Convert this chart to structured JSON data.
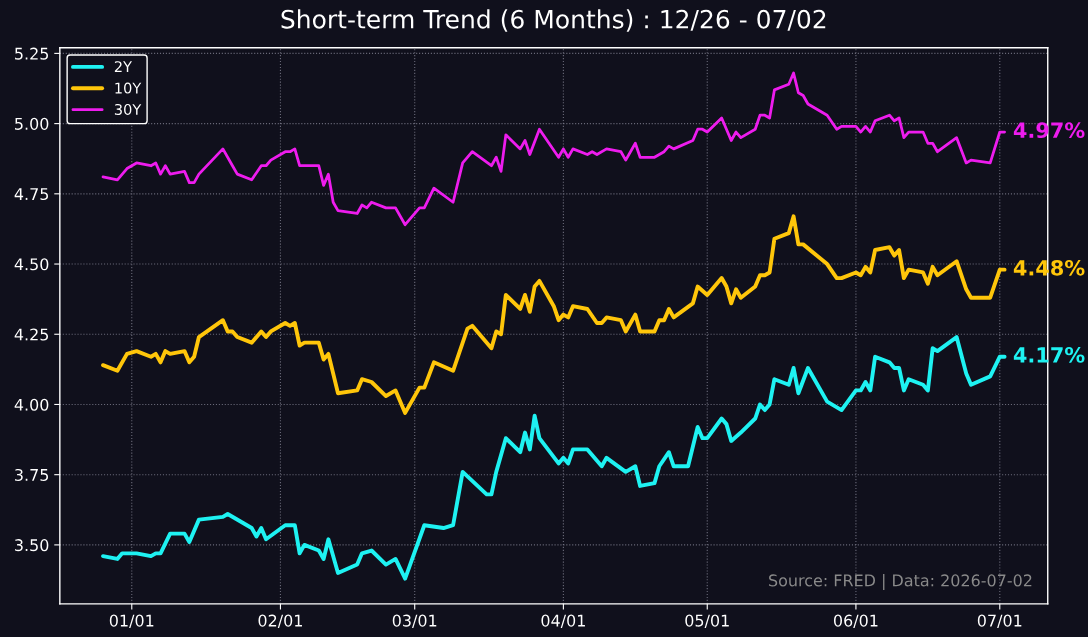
{
  "chart_data": {
    "type": "line",
    "title": "Short-term Trend (6 Months) : 12/26 - 07/02",
    "xlim": [
      "2025-12-17",
      "2026-07-11"
    ],
    "ylim": [
      3.29,
      5.27
    ],
    "xticks": [
      {
        "value": "2026-01-01",
        "label": "01/01"
      },
      {
        "value": "2026-02-01",
        "label": "02/01"
      },
      {
        "value": "2026-03-01",
        "label": "03/01"
      },
      {
        "value": "2026-04-01",
        "label": "04/01"
      },
      {
        "value": "2026-05-01",
        "label": "05/01"
      },
      {
        "value": "2026-06-01",
        "label": "06/01"
      },
      {
        "value": "2026-07-01",
        "label": "07/01"
      }
    ],
    "yticks": [
      {
        "value": 3.5,
        "label": "3.50"
      },
      {
        "value": 3.75,
        "label": "3.75"
      },
      {
        "value": 4.0,
        "label": "4.00"
      },
      {
        "value": 4.25,
        "label": "4.25"
      },
      {
        "value": 4.5,
        "label": "4.50"
      },
      {
        "value": 4.75,
        "label": "4.75"
      },
      {
        "value": 5.0,
        "label": "5.00"
      },
      {
        "value": 5.25,
        "label": "5.25"
      }
    ],
    "grid": true,
    "legend": "top left",
    "line_style": "solid",
    "marker": "none",
    "series": [
      {
        "name": "2Y",
        "color": "#1ef2f2",
        "x": [
          "2025-12-26",
          "2025-12-29",
          "2025-12-30",
          "2026-01-02",
          "2026-01-05",
          "2026-01-06",
          "2026-01-07",
          "2026-01-09",
          "2026-01-12",
          "2026-01-13",
          "2026-01-15",
          "2026-01-20",
          "2026-01-21",
          "2026-01-26",
          "2026-01-27",
          "2026-01-28",
          "2026-01-29",
          "2026-02-02",
          "2026-02-04",
          "2026-02-05",
          "2026-02-06",
          "2026-02-09",
          "2026-02-10",
          "2026-02-11",
          "2026-02-13",
          "2026-02-17",
          "2026-02-18",
          "2026-02-20",
          "2026-02-23",
          "2026-02-25",
          "2026-02-27",
          "2026-03-03",
          "2026-03-07",
          "2026-03-09",
          "2026-03-11",
          "2026-03-16",
          "2026-03-17",
          "2026-03-18",
          "2026-03-20",
          "2026-03-23",
          "2026-03-24",
          "2026-03-25",
          "2026-03-26",
          "2026-03-27",
          "2026-03-31",
          "2026-04-01",
          "2026-04-02",
          "2026-04-03",
          "2026-04-06",
          "2026-04-09",
          "2026-04-10",
          "2026-04-14",
          "2026-04-16",
          "2026-04-17",
          "2026-04-20",
          "2026-04-21",
          "2026-04-23",
          "2026-04-24",
          "2026-04-27",
          "2026-04-29",
          "2026-04-30",
          "2026-05-01",
          "2026-05-04",
          "2026-05-05",
          "2026-05-06",
          "2026-05-08",
          "2026-05-11",
          "2026-05-12",
          "2026-05-13",
          "2026-05-14",
          "2026-05-15",
          "2026-05-18",
          "2026-05-19",
          "2026-05-20",
          "2026-05-22",
          "2026-05-26",
          "2026-05-29",
          "2026-06-01",
          "2026-06-02",
          "2026-06-03",
          "2026-06-04",
          "2026-06-05",
          "2026-06-08",
          "2026-06-09",
          "2026-06-10",
          "2026-06-11",
          "2026-06-12",
          "2026-06-15",
          "2026-06-16",
          "2026-06-17",
          "2026-06-18",
          "2026-06-22",
          "2026-06-24",
          "2026-06-25",
          "2026-06-29",
          "2026-07-01",
          "2026-07-02"
        ],
        "values": [
          3.46,
          3.45,
          3.47,
          3.47,
          3.46,
          3.47,
          3.47,
          3.54,
          3.54,
          3.51,
          3.59,
          3.6,
          3.61,
          3.56,
          3.53,
          3.56,
          3.52,
          3.57,
          3.57,
          3.47,
          3.5,
          3.48,
          3.45,
          3.52,
          3.4,
          3.43,
          3.47,
          3.48,
          3.43,
          3.45,
          3.38,
          3.57,
          3.56,
          3.57,
          3.76,
          3.68,
          3.68,
          3.76,
          3.88,
          3.83,
          3.9,
          3.84,
          3.96,
          3.88,
          3.79,
          3.81,
          3.79,
          3.84,
          3.84,
          3.78,
          3.81,
          3.76,
          3.78,
          3.71,
          3.72,
          3.78,
          3.83,
          3.78,
          3.78,
          3.92,
          3.88,
          3.88,
          3.95,
          3.93,
          3.87,
          3.9,
          3.95,
          4.0,
          3.98,
          4.0,
          4.09,
          4.07,
          4.13,
          4.04,
          4.13,
          4.01,
          3.98,
          4.05,
          4.05,
          4.08,
          4.05,
          4.17,
          4.15,
          4.13,
          4.13,
          4.05,
          4.09,
          4.07,
          4.05,
          4.2,
          4.19,
          4.24,
          4.11,
          4.07,
          4.1,
          4.17,
          4.17
        ]
      },
      {
        "name": "10Y",
        "color": "#ffc60a",
        "x": [
          "2025-12-26",
          "2025-12-29",
          "2025-12-31",
          "2026-01-02",
          "2026-01-05",
          "2026-01-06",
          "2026-01-07",
          "2026-01-08",
          "2026-01-09",
          "2026-01-12",
          "2026-01-13",
          "2026-01-14",
          "2026-01-15",
          "2026-01-20",
          "2026-01-21",
          "2026-01-22",
          "2026-01-23",
          "2026-01-26",
          "2026-01-28",
          "2026-01-29",
          "2026-01-30",
          "2026-02-02",
          "2026-02-03",
          "2026-02-04",
          "2026-02-05",
          "2026-02-06",
          "2026-02-09",
          "2026-02-10",
          "2026-02-11",
          "2026-02-13",
          "2026-02-17",
          "2026-02-18",
          "2026-02-20",
          "2026-02-23",
          "2026-02-25",
          "2026-02-27",
          "2026-03-02",
          "2026-03-03",
          "2026-03-05",
          "2026-03-09",
          "2026-03-12",
          "2026-03-13",
          "2026-03-17",
          "2026-03-18",
          "2026-03-19",
          "2026-03-20",
          "2026-03-23",
          "2026-03-24",
          "2026-03-25",
          "2026-03-26",
          "2026-03-27",
          "2026-03-30",
          "2026-03-31",
          "2026-04-01",
          "2026-04-02",
          "2026-04-03",
          "2026-04-06",
          "2026-04-08",
          "2026-04-09",
          "2026-04-10",
          "2026-04-13",
          "2026-04-14",
          "2026-04-16",
          "2026-04-17",
          "2026-04-20",
          "2026-04-21",
          "2026-04-22",
          "2026-04-23",
          "2026-04-24",
          "2026-04-28",
          "2026-04-29",
          "2026-05-01",
          "2026-05-04",
          "2026-05-05",
          "2026-05-06",
          "2026-05-07",
          "2026-05-08",
          "2026-05-11",
          "2026-05-12",
          "2026-05-13",
          "2026-05-14",
          "2026-05-15",
          "2026-05-18",
          "2026-05-19",
          "2026-05-20",
          "2026-05-21",
          "2026-05-26",
          "2026-05-28",
          "2026-05-29",
          "2026-06-01",
          "2026-06-02",
          "2026-06-03",
          "2026-06-04",
          "2026-06-05",
          "2026-06-08",
          "2026-06-09",
          "2026-06-10",
          "2026-06-11",
          "2026-06-12",
          "2026-06-15",
          "2026-06-16",
          "2026-06-17",
          "2026-06-18",
          "2026-06-22",
          "2026-06-24",
          "2026-06-25",
          "2026-06-29",
          "2026-07-01",
          "2026-07-02"
        ],
        "values": [
          4.14,
          4.12,
          4.18,
          4.19,
          4.17,
          4.18,
          4.15,
          4.19,
          4.18,
          4.19,
          4.15,
          4.17,
          4.24,
          4.3,
          4.26,
          4.26,
          4.24,
          4.22,
          4.26,
          4.24,
          4.26,
          4.29,
          4.28,
          4.29,
          4.21,
          4.22,
          4.22,
          4.16,
          4.18,
          4.04,
          4.05,
          4.09,
          4.08,
          4.03,
          4.05,
          3.97,
          4.06,
          4.06,
          4.15,
          4.12,
          4.27,
          4.28,
          4.2,
          4.26,
          4.25,
          4.39,
          4.34,
          4.39,
          4.33,
          4.42,
          4.44,
          4.35,
          4.3,
          4.32,
          4.31,
          4.35,
          4.34,
          4.29,
          4.29,
          4.31,
          4.3,
          4.26,
          4.32,
          4.26,
          4.26,
          4.3,
          4.3,
          4.34,
          4.31,
          4.36,
          4.42,
          4.39,
          4.45,
          4.42,
          4.36,
          4.41,
          4.38,
          4.42,
          4.46,
          4.46,
          4.47,
          4.59,
          4.61,
          4.67,
          4.57,
          4.57,
          4.5,
          4.45,
          4.45,
          4.47,
          4.46,
          4.49,
          4.47,
          4.55,
          4.56,
          4.53,
          4.55,
          4.45,
          4.48,
          4.47,
          4.43,
          4.49,
          4.46,
          4.51,
          4.41,
          4.38,
          4.38,
          4.48,
          4.48
        ]
      },
      {
        "name": "30Y",
        "color": "#ee1cee",
        "x": [
          "2025-12-26",
          "2025-12-29",
          "2025-12-31",
          "2026-01-02",
          "2026-01-05",
          "2026-01-06",
          "2026-01-07",
          "2026-01-08",
          "2026-01-09",
          "2026-01-12",
          "2026-01-13",
          "2026-01-14",
          "2026-01-15",
          "2026-01-20",
          "2026-01-22",
          "2026-01-23",
          "2026-01-26",
          "2026-01-28",
          "2026-01-29",
          "2026-01-30",
          "2026-02-02",
          "2026-02-03",
          "2026-02-04",
          "2026-02-05",
          "2026-02-09",
          "2026-02-10",
          "2026-02-11",
          "2026-02-12",
          "2026-02-13",
          "2026-02-17",
          "2026-02-18",
          "2026-02-19",
          "2026-02-20",
          "2026-02-23",
          "2026-02-25",
          "2026-02-27",
          "2026-03-02",
          "2026-03-03",
          "2026-03-05",
          "2026-03-09",
          "2026-03-11",
          "2026-03-13",
          "2026-03-17",
          "2026-03-18",
          "2026-03-19",
          "2026-03-20",
          "2026-03-23",
          "2026-03-24",
          "2026-03-25",
          "2026-03-27",
          "2026-03-31",
          "2026-04-01",
          "2026-04-02",
          "2026-04-03",
          "2026-04-06",
          "2026-04-07",
          "2026-04-08",
          "2026-04-10",
          "2026-04-13",
          "2026-04-14",
          "2026-04-16",
          "2026-04-17",
          "2026-04-20",
          "2026-04-22",
          "2026-04-23",
          "2026-04-24",
          "2026-04-28",
          "2026-04-29",
          "2026-04-30",
          "2026-05-01",
          "2026-05-04",
          "2026-05-06",
          "2026-05-07",
          "2026-05-08",
          "2026-05-11",
          "2026-05-12",
          "2026-05-13",
          "2026-05-14",
          "2026-05-15",
          "2026-05-18",
          "2026-05-19",
          "2026-05-20",
          "2026-05-21",
          "2026-05-22",
          "2026-05-26",
          "2026-05-28",
          "2026-05-29",
          "2026-06-01",
          "2026-06-02",
          "2026-06-03",
          "2026-06-04",
          "2026-06-05",
          "2026-06-08",
          "2026-06-09",
          "2026-06-10",
          "2026-06-11",
          "2026-06-12",
          "2026-06-15",
          "2026-06-16",
          "2026-06-17",
          "2026-06-18",
          "2026-06-22",
          "2026-06-24",
          "2026-06-25",
          "2026-06-29",
          "2026-07-01",
          "2026-07-02"
        ],
        "values": [
          4.81,
          4.8,
          4.84,
          4.86,
          4.85,
          4.86,
          4.82,
          4.85,
          4.82,
          4.83,
          4.79,
          4.79,
          4.82,
          4.91,
          4.85,
          4.82,
          4.8,
          4.85,
          4.85,
          4.87,
          4.9,
          4.9,
          4.91,
          4.85,
          4.85,
          4.78,
          4.82,
          4.72,
          4.69,
          4.68,
          4.71,
          4.7,
          4.72,
          4.7,
          4.7,
          4.64,
          4.7,
          4.7,
          4.77,
          4.72,
          4.86,
          4.9,
          4.85,
          4.88,
          4.83,
          4.96,
          4.91,
          4.94,
          4.89,
          4.98,
          4.88,
          4.91,
          4.88,
          4.91,
          4.89,
          4.9,
          4.89,
          4.91,
          4.9,
          4.87,
          4.93,
          4.88,
          4.88,
          4.9,
          4.92,
          4.91,
          4.94,
          4.98,
          4.98,
          4.97,
          5.02,
          4.94,
          4.97,
          4.95,
          4.98,
          5.03,
          5.03,
          5.02,
          5.12,
          5.14,
          5.18,
          5.11,
          5.1,
          5.07,
          5.03,
          4.98,
          4.99,
          4.99,
          4.97,
          4.99,
          4.97,
          5.01,
          5.03,
          5.01,
          5.02,
          4.95,
          4.97,
          4.97,
          4.93,
          4.93,
          4.9,
          4.95,
          4.86,
          4.87,
          4.86,
          4.97,
          4.97
        ]
      }
    ],
    "annotations": [
      {
        "text": "4.17%",
        "x": "2026-07-02",
        "y": 4.17
      },
      {
        "text": "4.48%",
        "x": "2026-07-02",
        "y": 4.48
      },
      {
        "text": "4.97%",
        "x": "2026-07-02",
        "y": 4.97
      },
      "Source: FRED | Data: 2026-07-02"
    ]
  }
}
